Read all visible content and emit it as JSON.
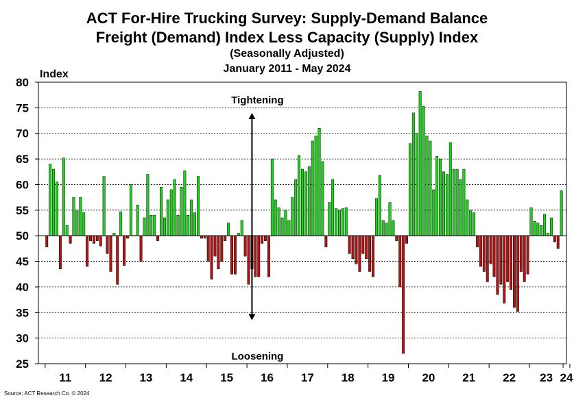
{
  "title_line1": "ACT For-Hire Trucking Survey: Supply-Demand Balance",
  "title_line2": "Freight (Demand) Index Less Capacity (Supply) Index",
  "subtitle1": "(Seasonally Adjusted)",
  "subtitle2": "January 2011 - May 2024",
  "source": "Source: ACT Research Co. © 2024",
  "chart_data": {
    "type": "bar",
    "ylabel": "Index",
    "xlabel": "",
    "baseline": 50,
    "ylim": [
      25,
      80
    ],
    "yticks": [
      25,
      30,
      35,
      40,
      45,
      50,
      55,
      60,
      65,
      70,
      75,
      80
    ],
    "xtick_labels": [
      "11",
      "12",
      "13",
      "14",
      "15",
      "16",
      "17",
      "18",
      "19",
      "20",
      "21",
      "22",
      "23",
      "24"
    ],
    "grid": true,
    "positive_color": "#22d11f",
    "negative_color": "#b01414",
    "annotations": [
      {
        "text": "Tightening",
        "value": 76.5
      },
      {
        "text": "Loosening",
        "value": 26.5
      }
    ],
    "arrow_range": [
      33.5,
      74
    ],
    "arrow_at_index": 61,
    "values": [
      47.8,
      64.0,
      63.0,
      60.5,
      43.5,
      65.2,
      52.0,
      48.5,
      57.5,
      55.0,
      57.5,
      54.5,
      44.0,
      49.0,
      48.5,
      49.0,
      48.0,
      61.6,
      46.5,
      43.0,
      50.5,
      40.5,
      54.7,
      44.2,
      49.5,
      60.0,
      50.0,
      56.0,
      45.0,
      53.5,
      62.0,
      54.0,
      54.0,
      49.0,
      59.5,
      53.5,
      57.0,
      59.0,
      61.0,
      54.0,
      59.5,
      62.7,
      54.0,
      57.0,
      54.5,
      61.6,
      49.5,
      49.5,
      45.0,
      41.5,
      46.0,
      43.5,
      45.0,
      49.0,
      52.5,
      42.5,
      42.5,
      50.5,
      53.0,
      46.0,
      40.5,
      43.5,
      42.0,
      42.0,
      48.5,
      49.0,
      42.0,
      65.0,
      57.0,
      55.5,
      53.5,
      55.0,
      53.0,
      57.5,
      61.0,
      65.7,
      63.0,
      62.5,
      63.5,
      68.5,
      69.5,
      71.0,
      64.5,
      47.8,
      56.5,
      61.0,
      55.3,
      55.0,
      55.3,
      55.5,
      46.5,
      45.5,
      44.5,
      43.0,
      46.5,
      45.5,
      43.0,
      42.0,
      57.3,
      61.8,
      53.0,
      52.5,
      56.5,
      53.0,
      49.0,
      40.0,
      27.0,
      48.5,
      68.0,
      74.0,
      70.0,
      78.2,
      75.3,
      69.5,
      68.5,
      59.0,
      65.5,
      65.0,
      62.5,
      62.0,
      68.2,
      63.0,
      63.0,
      61.0,
      63.0,
      57.0,
      55.0,
      54.5,
      47.8,
      44.0,
      43.0,
      41.0,
      44.5,
      42.0,
      38.5,
      40.5,
      36.8,
      41.0,
      39.5,
      36.0,
      35.2,
      43.0,
      41.0,
      42.5,
      55.5,
      52.8,
      52.5,
      52.0,
      54.2,
      50.5,
      53.5,
      48.8,
      47.5,
      58.8
    ]
  }
}
